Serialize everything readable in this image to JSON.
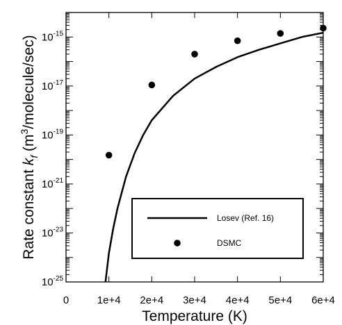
{
  "chart_data": {
    "type": "line",
    "xlabel": "Temperature (K)",
    "ylabel": {
      "prefix": "Rate constant ",
      "k": "k",
      "sub": "f",
      "units_open": " (m",
      "sup": "3",
      "units_close": "/molecule/sec)"
    },
    "xlim": [
      0,
      60000
    ],
    "ylim": [
      1e-25,
      1e-14
    ],
    "yscale": "log",
    "x_ticks": [
      {
        "value": 0,
        "label": "0"
      },
      {
        "value": 10000,
        "label": "1e+4"
      },
      {
        "value": 20000,
        "label": "2e+4"
      },
      {
        "value": 30000,
        "label": "3e+4"
      },
      {
        "value": 40000,
        "label": "4e+4"
      },
      {
        "value": 50000,
        "label": "5e+4"
      },
      {
        "value": 60000,
        "label": "6e+4"
      }
    ],
    "y_ticks": [
      {
        "exp": -25,
        "base": "10",
        "sup": "-25"
      },
      {
        "exp": -23,
        "base": "10",
        "sup": "-23"
      },
      {
        "exp": -21,
        "base": "10",
        "sup": "-21"
      },
      {
        "exp": -19,
        "base": "10",
        "sup": "-19"
      },
      {
        "exp": -17,
        "base": "10",
        "sup": "-17"
      },
      {
        "exp": -15,
        "base": "10",
        "sup": "-15"
      }
    ],
    "grid": false,
    "legend_position": "bottom-right",
    "series": [
      {
        "name": "Losev (Ref. 16)",
        "kind": "line",
        "color": "#000000",
        "x": [
          9000,
          10000,
          11000,
          12000,
          14000,
          16000,
          18000,
          20000,
          25000,
          30000,
          35000,
          40000,
          45000,
          50000,
          55000,
          60000
        ],
        "y": [
          5e-26,
          1.5e-24,
          1.5e-23,
          1e-22,
          2e-21,
          1.8e-20,
          1e-19,
          4e-19,
          4e-18,
          2e-17,
          6e-17,
          1.5e-16,
          3e-16,
          5.5e-16,
          1e-15,
          1.5e-15
        ]
      },
      {
        "name": "DSMC",
        "kind": "scatter",
        "color": "#000000",
        "x": [
          10000,
          20000,
          30000,
          40000,
          50000,
          60000
        ],
        "y": [
          1.5e-20,
          1.1e-17,
          2e-16,
          7e-16,
          1.4e-15,
          2.3e-15
        ]
      }
    ]
  }
}
